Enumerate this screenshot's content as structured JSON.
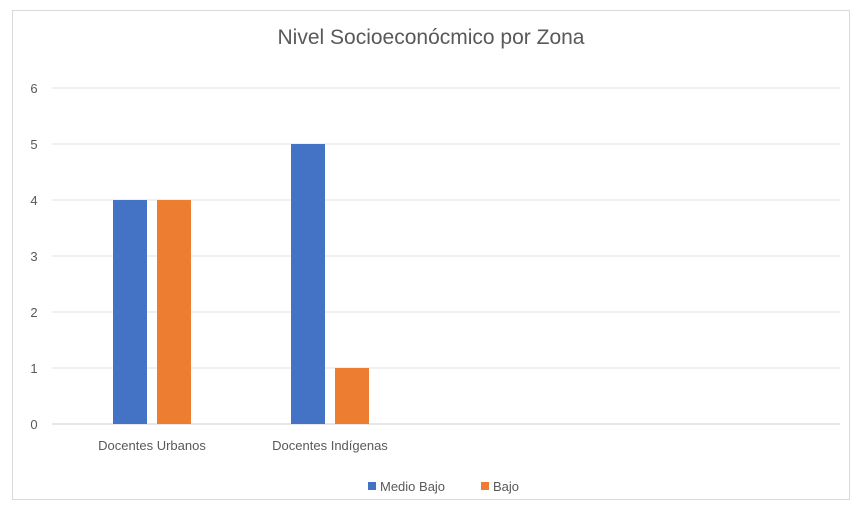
{
  "chart_data": {
    "type": "bar",
    "title": "Nivel Socioeconócmico por Zona",
    "categories": [
      "Docentes Urbanos",
      "Docentes Indígenas"
    ],
    "series": [
      {
        "name": "Medio Bajo",
        "values": [
          4,
          5
        ],
        "color": "#4472c4"
      },
      {
        "name": "Bajo",
        "values": [
          4,
          1
        ],
        "color": "#ed7d31"
      }
    ],
    "ylim": [
      0,
      6
    ],
    "yticks": [
      0,
      1,
      2,
      3,
      4,
      5,
      6
    ],
    "grid": true,
    "legend_position": "bottom"
  }
}
